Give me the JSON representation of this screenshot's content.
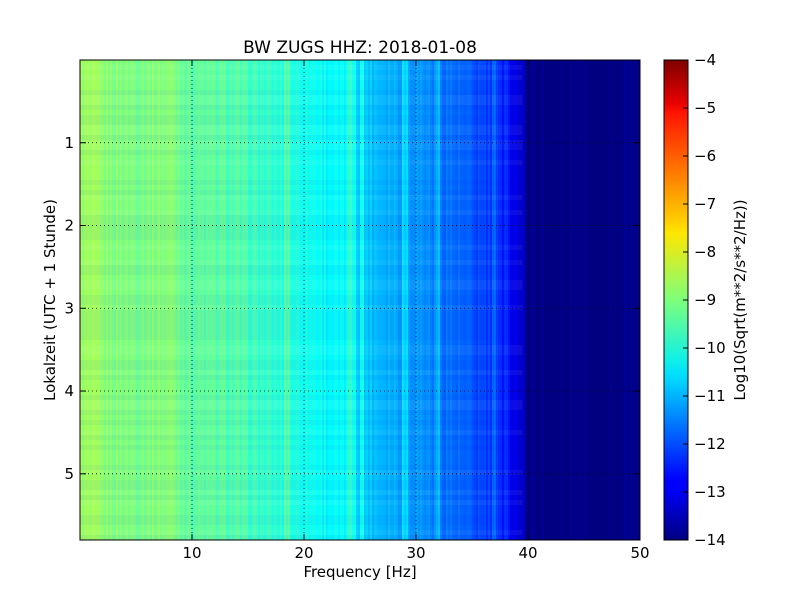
{
  "chart_data": {
    "type": "heatmap",
    "title": "BW ZUGS HHZ: 2018-01-08",
    "xlabel": "Frequency [Hz]",
    "ylabel": "Lokalzeit (UTC + 1 Stunde)",
    "xlim": [
      0,
      50
    ],
    "ylim": [
      0.0,
      5.8
    ],
    "y_axis_inverted": true,
    "xticks": [
      10,
      20,
      30,
      40,
      50
    ],
    "xtick_labels": [
      "10",
      "20",
      "30",
      "40",
      "50"
    ],
    "yticks": [
      1,
      2,
      3,
      4,
      5
    ],
    "ytick_labels": [
      "1",
      "2",
      "3",
      "4",
      "5"
    ],
    "grid": true,
    "colormap": "jet",
    "colorbar": {
      "label": "Log10(Sqrt(m**2/s**2/Hz))",
      "range": [
        -14,
        -4
      ],
      "ticks": [
        -4,
        -5,
        -6,
        -7,
        -8,
        -9,
        -10,
        -11,
        -12,
        -13,
        -14
      ],
      "tick_labels": [
        "−4",
        "−5",
        "−6",
        "−7",
        "−8",
        "−9",
        "−10",
        "−11",
        "−12",
        "−13",
        "−14"
      ]
    },
    "freq_profile_hz": [
      0,
      2,
      5,
      8,
      10,
      13,
      15,
      17,
      20,
      22,
      24,
      26,
      28,
      30,
      32,
      34,
      35,
      36,
      37,
      38,
      39,
      40,
      41,
      45,
      50
    ],
    "freq_profile_log10": [
      -8.7,
      -8.9,
      -9.0,
      -8.9,
      -9.3,
      -9.4,
      -9.6,
      -9.8,
      -10.0,
      -10.2,
      -10.4,
      -10.8,
      -11.0,
      -11.2,
      -11.5,
      -11.8,
      -12.0,
      -12.1,
      -12.3,
      -12.6,
      -13.0,
      -13.8,
      -14.0,
      -14.0,
      -14.0
    ],
    "spectral_lines_hz": [
      18.5,
      24.0,
      24.5,
      25.2,
      29.0,
      32.0,
      37.0,
      38.0
    ]
  }
}
